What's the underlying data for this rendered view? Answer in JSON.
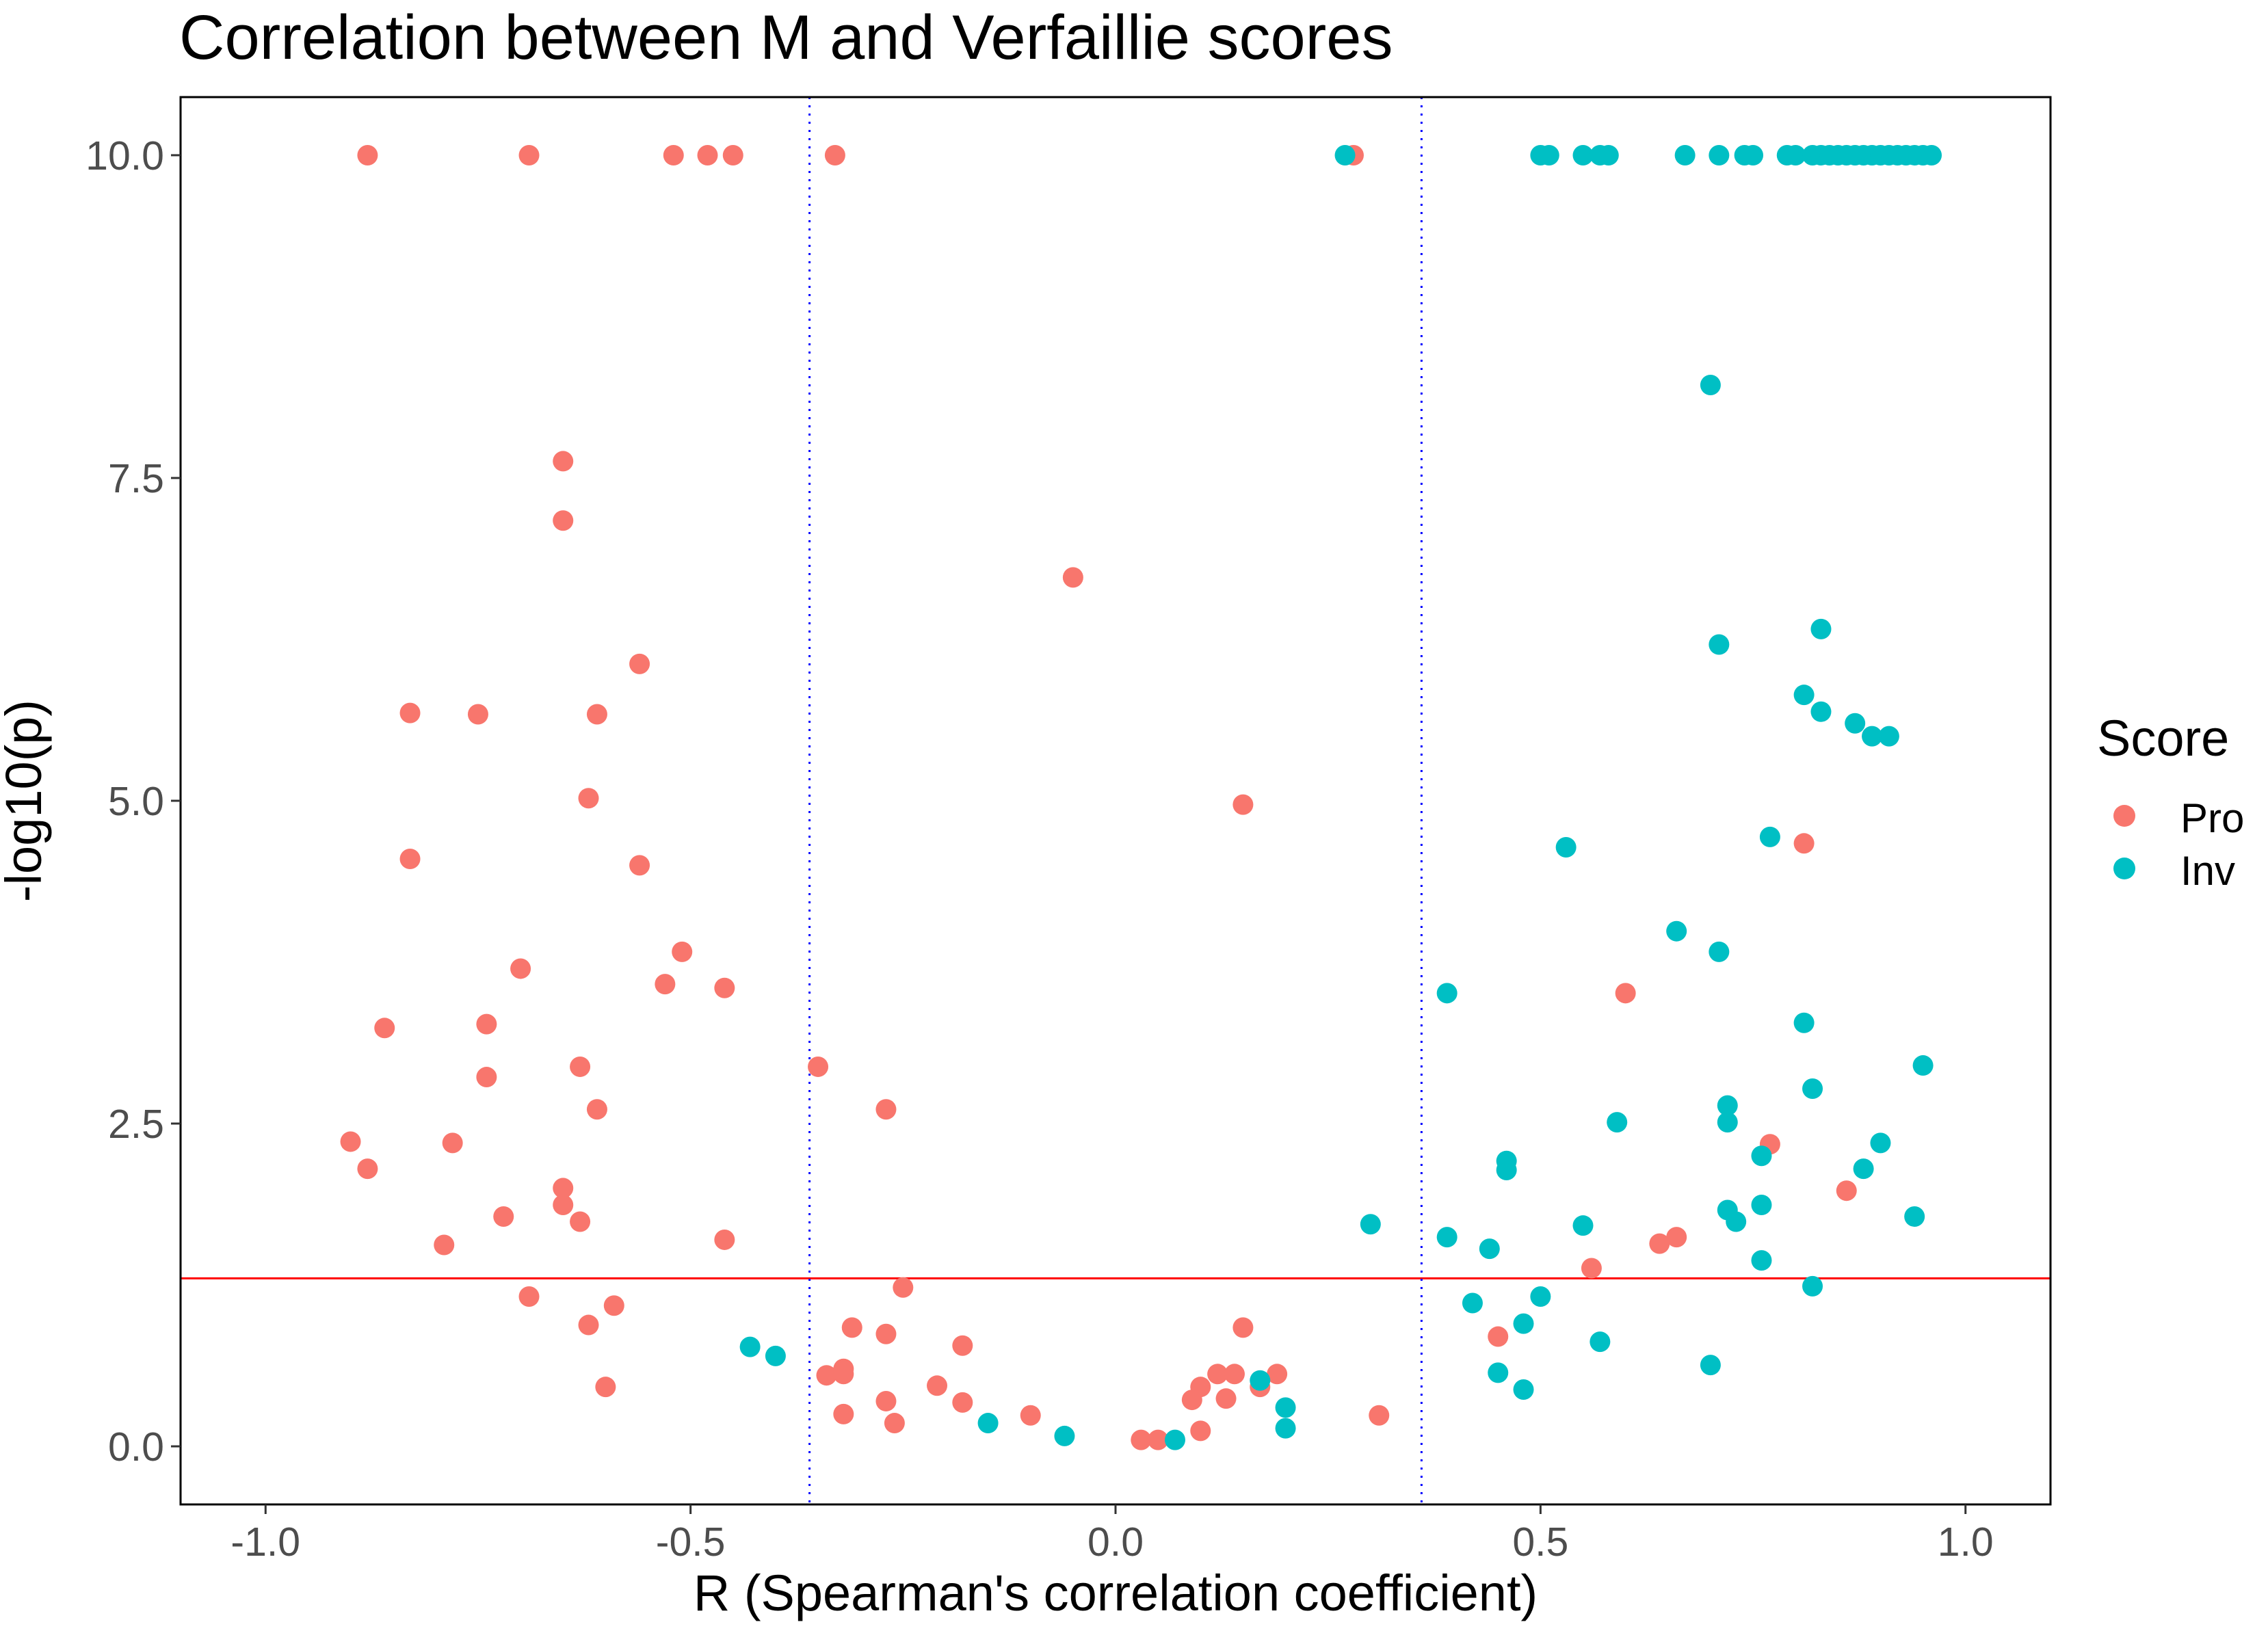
{
  "chart_data": {
    "type": "scatter",
    "title": "Correlation between M and Verfaillie scores",
    "xlabel": "R (Spearman's correlation coefficient)",
    "ylabel": "-log10(p)",
    "xlim": [
      -1.1,
      1.1
    ],
    "ylim": [
      -0.45,
      10.45
    ],
    "x_ticks": [
      {
        "value": -1.0,
        "label": "-1.0"
      },
      {
        "value": -0.5,
        "label": "-0.5"
      },
      {
        "value": 0.0,
        "label": "0.0"
      },
      {
        "value": 0.5,
        "label": "0.5"
      },
      {
        "value": 1.0,
        "label": "1.0"
      }
    ],
    "y_ticks": [
      {
        "value": 0.0,
        "label": "0.0"
      },
      {
        "value": 2.5,
        "label": "2.5"
      },
      {
        "value": 5.0,
        "label": "5.0"
      },
      {
        "value": 7.5,
        "label": "7.5"
      },
      {
        "value": 10.0,
        "label": "10.0"
      }
    ],
    "grid": false,
    "legend": {
      "title": "Score",
      "position": "right"
    },
    "reference_lines": [
      {
        "orientation": "horizontal",
        "value": 1.301,
        "color": "#ff0000",
        "style": "solid"
      },
      {
        "orientation": "vertical",
        "value": -0.36,
        "color": "#0000ff",
        "style": "dotted"
      },
      {
        "orientation": "vertical",
        "value": 0.36,
        "color": "#0000ff",
        "style": "dotted"
      }
    ],
    "series": [
      {
        "name": "Pro",
        "color": "#F8766D",
        "points": [
          [
            -0.88,
            10.0
          ],
          [
            -0.69,
            10.0
          ],
          [
            -0.52,
            10.0
          ],
          [
            -0.48,
            10.0
          ],
          [
            -0.45,
            10.0
          ],
          [
            -0.33,
            10.0
          ],
          [
            0.28,
            10.0
          ],
          [
            -0.65,
            7.63
          ],
          [
            -0.65,
            7.17
          ],
          [
            -0.05,
            6.73
          ],
          [
            -0.56,
            6.06
          ],
          [
            -0.83,
            5.68
          ],
          [
            -0.75,
            5.67
          ],
          [
            -0.61,
            5.67
          ],
          [
            -0.62,
            5.02
          ],
          [
            0.15,
            4.97
          ],
          [
            0.81,
            4.67
          ],
          [
            -0.83,
            4.55
          ],
          [
            -0.56,
            4.5
          ],
          [
            -0.51,
            3.83
          ],
          [
            -0.7,
            3.7
          ],
          [
            -0.53,
            3.58
          ],
          [
            -0.46,
            3.55
          ],
          [
            0.6,
            3.51
          ],
          [
            -0.86,
            3.24
          ],
          [
            -0.74,
            3.27
          ],
          [
            -0.63,
            2.94
          ],
          [
            -0.35,
            2.94
          ],
          [
            -0.74,
            2.86
          ],
          [
            -0.61,
            2.61
          ],
          [
            -0.27,
            2.61
          ],
          [
            -0.9,
            2.36
          ],
          [
            -0.78,
            2.35
          ],
          [
            0.77,
            2.34
          ],
          [
            -0.88,
            2.15
          ],
          [
            -0.65,
            2.0
          ],
          [
            0.86,
            1.98
          ],
          [
            -0.65,
            1.87
          ],
          [
            -0.72,
            1.78
          ],
          [
            -0.63,
            1.74
          ],
          [
            0.66,
            1.62
          ],
          [
            -0.46,
            1.6
          ],
          [
            0.64,
            1.57
          ],
          [
            -0.79,
            1.56
          ],
          [
            0.56,
            1.38
          ],
          [
            -0.25,
            1.23
          ],
          [
            -0.69,
            1.16
          ],
          [
            -0.59,
            1.09
          ],
          [
            -0.62,
            0.94
          ],
          [
            0.15,
            0.92
          ],
          [
            -0.31,
            0.92
          ],
          [
            -0.27,
            0.87
          ],
          [
            0.45,
            0.85
          ],
          [
            -0.18,
            0.78
          ],
          [
            -0.34,
            0.55
          ],
          [
            -0.32,
            0.56
          ],
          [
            -0.32,
            0.6
          ],
          [
            0.12,
            0.56
          ],
          [
            0.14,
            0.56
          ],
          [
            0.19,
            0.56
          ],
          [
            -0.21,
            0.47
          ],
          [
            -0.6,
            0.46
          ],
          [
            0.1,
            0.46
          ],
          [
            0.17,
            0.46
          ],
          [
            0.09,
            0.36
          ],
          [
            0.13,
            0.37
          ],
          [
            -0.27,
            0.35
          ],
          [
            -0.18,
            0.34
          ],
          [
            -0.32,
            0.25
          ],
          [
            -0.1,
            0.24
          ],
          [
            0.31,
            0.24
          ],
          [
            -0.26,
            0.18
          ],
          [
            0.1,
            0.12
          ],
          [
            0.03,
            0.05
          ],
          [
            0.05,
            0.05
          ]
        ]
      },
      {
        "name": "Inv",
        "color": "#00BFC4",
        "points": [
          [
            0.27,
            10.0
          ],
          [
            0.5,
            10.0
          ],
          [
            0.51,
            10.0
          ],
          [
            0.55,
            10.0
          ],
          [
            0.57,
            10.0
          ],
          [
            0.58,
            10.0
          ],
          [
            0.67,
            10.0
          ],
          [
            0.71,
            10.0
          ],
          [
            0.74,
            10.0
          ],
          [
            0.75,
            10.0
          ],
          [
            0.79,
            10.0
          ],
          [
            0.8,
            10.0
          ],
          [
            0.82,
            10.0
          ],
          [
            0.83,
            10.0
          ],
          [
            0.84,
            10.0
          ],
          [
            0.85,
            10.0
          ],
          [
            0.86,
            10.0
          ],
          [
            0.87,
            10.0
          ],
          [
            0.88,
            10.0
          ],
          [
            0.89,
            10.0
          ],
          [
            0.9,
            10.0
          ],
          [
            0.91,
            10.0
          ],
          [
            0.92,
            10.0
          ],
          [
            0.93,
            10.0
          ],
          [
            0.94,
            10.0
          ],
          [
            0.95,
            10.0
          ],
          [
            0.96,
            10.0
          ],
          [
            0.7,
            8.22
          ],
          [
            0.83,
            6.33
          ],
          [
            0.71,
            6.21
          ],
          [
            0.81,
            5.82
          ],
          [
            0.83,
            5.69
          ],
          [
            0.87,
            5.6
          ],
          [
            0.89,
            5.5
          ],
          [
            0.91,
            5.5
          ],
          [
            0.53,
            4.64
          ],
          [
            0.77,
            4.72
          ],
          [
            0.66,
            3.99
          ],
          [
            0.71,
            3.83
          ],
          [
            0.39,
            3.51
          ],
          [
            0.81,
            3.28
          ],
          [
            0.95,
            2.95
          ],
          [
            0.82,
            2.77
          ],
          [
            0.72,
            2.64
          ],
          [
            0.59,
            2.51
          ],
          [
            0.72,
            2.51
          ],
          [
            0.9,
            2.35
          ],
          [
            0.76,
            2.25
          ],
          [
            0.46,
            2.21
          ],
          [
            0.88,
            2.15
          ],
          [
            0.46,
            2.14
          ],
          [
            0.72,
            1.83
          ],
          [
            0.76,
            1.87
          ],
          [
            0.94,
            1.78
          ],
          [
            0.73,
            1.74
          ],
          [
            0.3,
            1.72
          ],
          [
            0.55,
            1.71
          ],
          [
            0.39,
            1.62
          ],
          [
            0.44,
            1.53
          ],
          [
            0.76,
            1.44
          ],
          [
            0.82,
            1.24
          ],
          [
            0.5,
            1.16
          ],
          [
            0.42,
            1.11
          ],
          [
            0.48,
            0.95
          ],
          [
            0.57,
            0.81
          ],
          [
            -0.43,
            0.77
          ],
          [
            -0.4,
            0.7
          ],
          [
            0.7,
            0.63
          ],
          [
            0.45,
            0.57
          ],
          [
            0.48,
            0.44
          ],
          [
            0.17,
            0.51
          ],
          [
            0.2,
            0.3
          ],
          [
            -0.15,
            0.18
          ],
          [
            0.2,
            0.14
          ],
          [
            -0.06,
            0.08
          ],
          [
            0.07,
            0.05
          ]
        ]
      }
    ]
  }
}
